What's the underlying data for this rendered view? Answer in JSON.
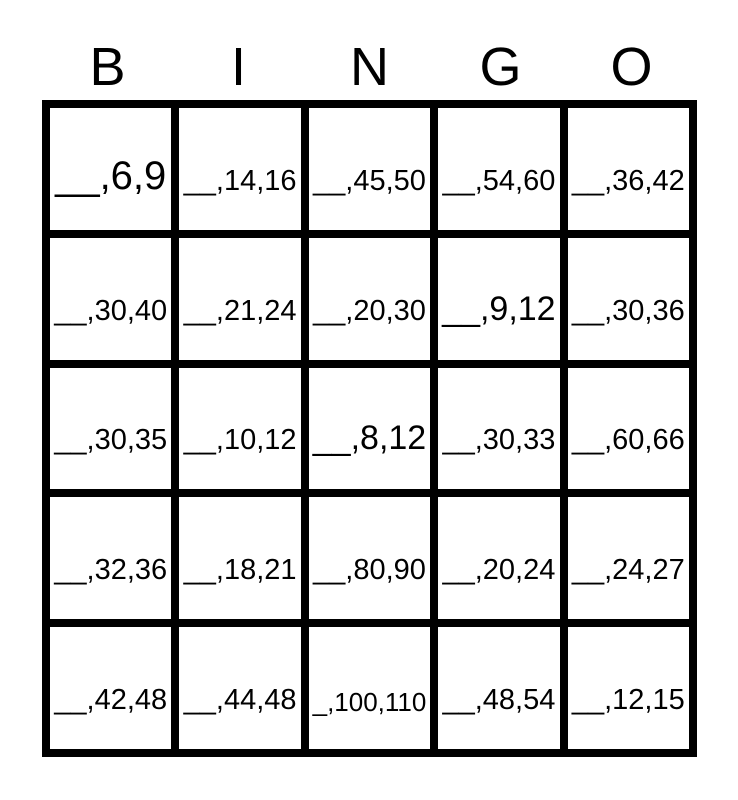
{
  "header": {
    "letters": [
      "B",
      "I",
      "N",
      "G",
      "O"
    ]
  },
  "card": {
    "columns": [
      "B",
      "I",
      "N",
      "G",
      "O"
    ],
    "cells": [
      "__,6,9",
      "__,14,16",
      "__,45,50",
      "__,54,60",
      "__,36,42",
      "__,30,40",
      "__,21,24",
      "__,20,30",
      "__,9,12",
      "__,30,36",
      "__,30,35",
      "__,10,12",
      "__,8,12",
      "__,30,33",
      "__,60,66",
      "__,32,36",
      "__,18,21",
      "__,80,90",
      "__,20,24",
      "__,24,27",
      "__,42,48",
      "__,44,48",
      "_,100,110",
      "__,48,54",
      "__,12,15"
    ],
    "colors": {
      "border": "#000000",
      "text": "#000000",
      "background": "#ffffff"
    }
  }
}
